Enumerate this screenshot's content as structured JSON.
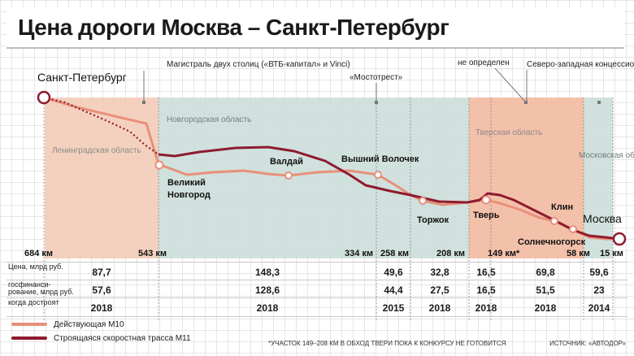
{
  "title": "Цена дороги Москва – Санкт-Петербург",
  "regions": [
    {
      "name": "Ленинградская область",
      "color": "#f2c9b4"
    },
    {
      "name": "Новгородская область",
      "color": "#c9dcd8"
    },
    {
      "name": "Тверская область",
      "color": "#f2b9a1"
    },
    {
      "name": "Московская область",
      "color": "#c9dcd8"
    }
  ],
  "operators": [
    "Магистраль двух столиц («ВТБ-капитал» и Vinci)",
    "«Мостотрест»",
    "не определен",
    "Северо-западная концессионная компания («Мостотрест» и Vinci)"
  ],
  "cities": {
    "spb": "Санкт-Петербург",
    "moscow": "Москва",
    "novgorod": "Великий Новгород",
    "valday": "Валдай",
    "volochek": "Вышний Волочек",
    "torzhok": "Торжок",
    "tver": "Тверь",
    "klin": "Клин",
    "solnech": "Солнечногорск"
  },
  "km_marks": [
    "684 км",
    "543 км",
    "334 км",
    "258 км",
    "208 км",
    "149 км*",
    "58 км",
    "15 км"
  ],
  "table": {
    "labels": [
      "Цена, млрд руб.",
      "госфинанси- рование, млрд руб.",
      "когда достроят"
    ],
    "price": [
      "87,7",
      "148,3",
      "49,6",
      "32,8",
      "16,5",
      "69,8",
      "59,6"
    ],
    "funding": [
      "57,6",
      "128,6",
      "44,4",
      "27,5",
      "16,5",
      "51,5",
      "23"
    ],
    "year": [
      "2018",
      "2018",
      "2015",
      "2018",
      "2018",
      "2018",
      "2014"
    ]
  },
  "legend": {
    "m10": "Действующая М10",
    "m11": "Строящаяся скоростная трасса М11"
  },
  "colors": {
    "m10": "#e8907a",
    "m11": "#8e1b2e"
  },
  "footnote": "*УЧАСТОК 149–208 КМ В ОБХОД ТВЕРИ ПОКА К КОНКУРСУ НЕ ГОТОВИТСЯ",
  "source": "ИСТОЧНИК: «АВТОДОР»"
}
